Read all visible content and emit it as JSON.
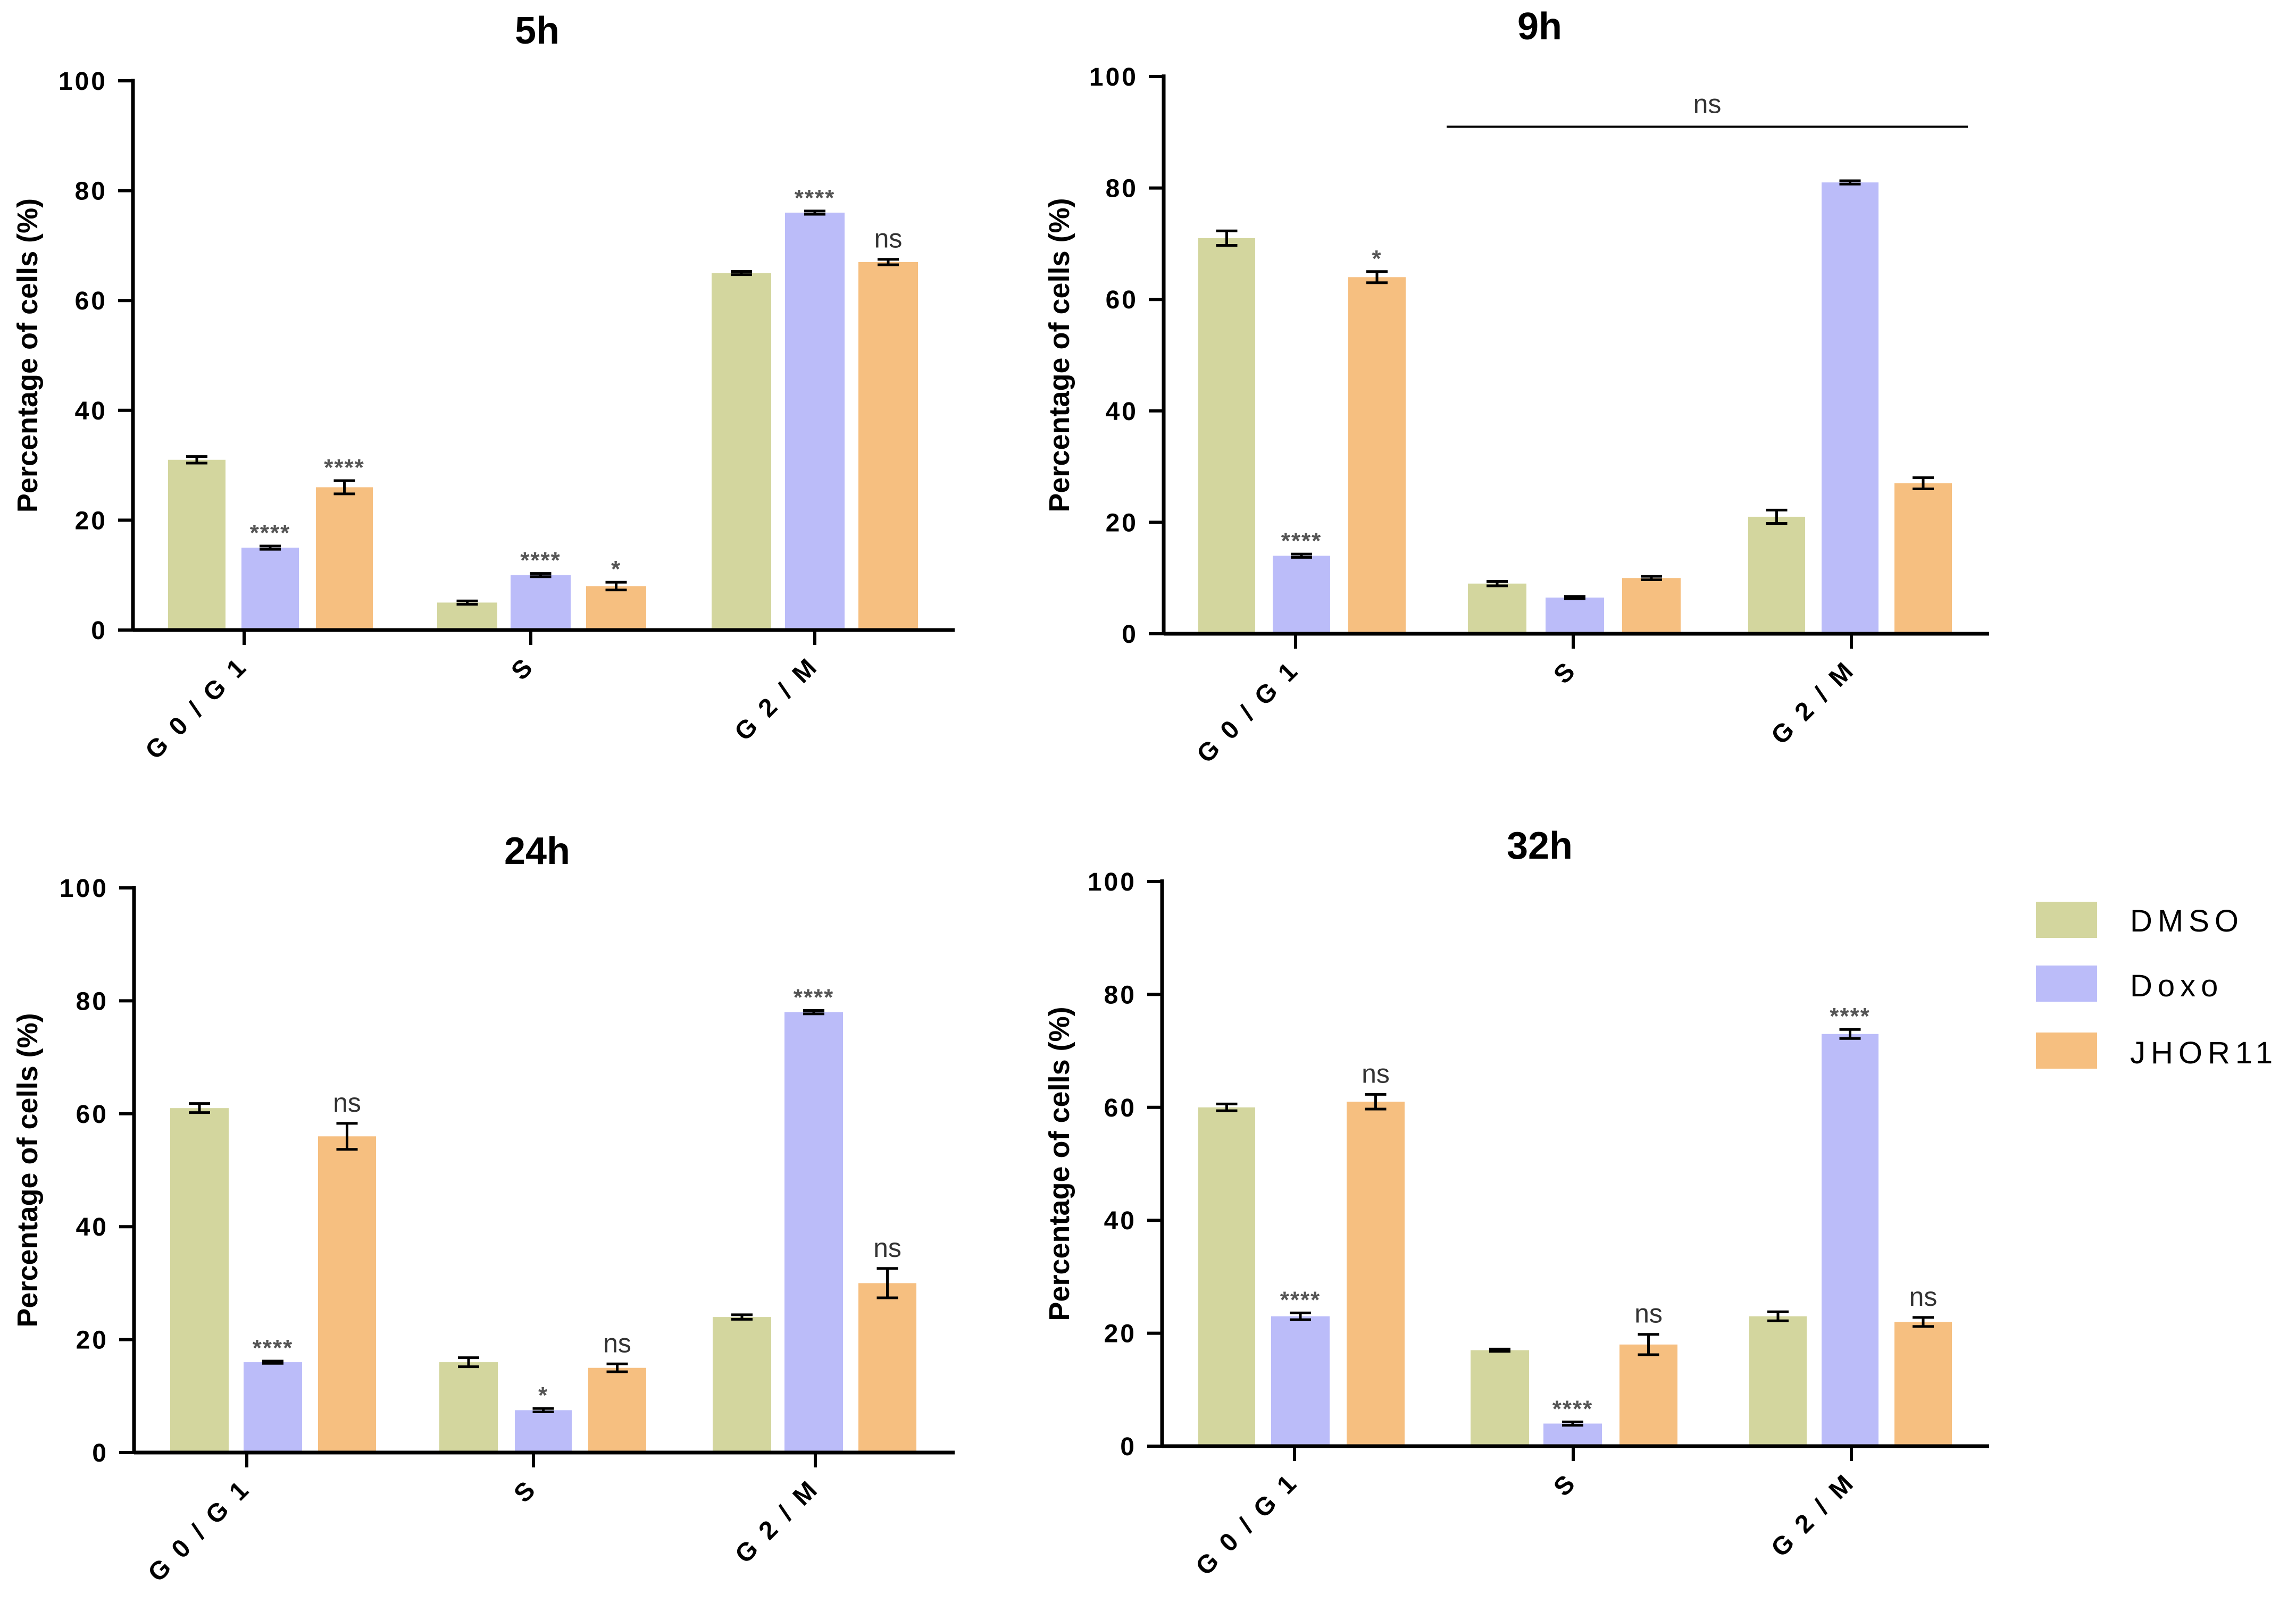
{
  "legend": [
    {
      "name": "DMSO",
      "color": "#D3D69E"
    },
    {
      "name": "Doxo",
      "color": "#BBBCF9"
    },
    {
      "name": "JHOR11",
      "color": "#F6BF80"
    }
  ],
  "chart_data": [
    {
      "type": "bar",
      "title": "5h",
      "ylabel": "Percentage of cells (%)",
      "categories": [
        "G0/G1",
        "S",
        "G2/M"
      ],
      "category_labels": [
        "G 0 / G 1",
        "S",
        "G 2 / M"
      ],
      "ylim": [
        0,
        100
      ],
      "yticks": [
        "0",
        "20",
        "40",
        "60",
        "80",
        "100"
      ],
      "series": [
        {
          "name": "DMSO",
          "values": [
            31,
            5,
            65
          ],
          "errors": [
            0.6,
            0.3,
            0.3
          ],
          "sig": [
            "",
            "",
            ""
          ]
        },
        {
          "name": "Doxo",
          "values": [
            15,
            10,
            76
          ],
          "errors": [
            0.3,
            0.3,
            0.3
          ],
          "sig": [
            "****",
            "****",
            "****"
          ]
        },
        {
          "name": "JHOR11",
          "values": [
            26,
            8,
            67
          ],
          "errors": [
            1.2,
            0.7,
            0.5
          ],
          "sig": [
            "****",
            "*",
            "ns"
          ]
        }
      ],
      "bracket": null
    },
    {
      "type": "bar",
      "title": "9h",
      "ylabel": "Percentage of cells (%)",
      "categories": [
        "G0/G1",
        "S",
        "G2/M"
      ],
      "category_labels": [
        "G 0 / G 1",
        "S",
        "G 2 / M"
      ],
      "ylim": [
        0,
        100
      ],
      "yticks": [
        "0",
        "20",
        "40",
        "60",
        "80",
        "100"
      ],
      "series": [
        {
          "name": "DMSO",
          "values": [
            71,
            9,
            21
          ],
          "errors": [
            1.3,
            0.4,
            1.2
          ],
          "sig": [
            "",
            "",
            ""
          ]
        },
        {
          "name": "Doxo",
          "values": [
            14,
            6.5,
            81
          ],
          "errors": [
            0.3,
            0.2,
            0.3
          ],
          "sig": [
            "****",
            "",
            ""
          ]
        },
        {
          "name": "JHOR11",
          "values": [
            64,
            10,
            27
          ],
          "errors": [
            1.0,
            0.3,
            1.0
          ],
          "sig": [
            "*",
            "",
            ""
          ]
        }
      ],
      "bracket": {
        "label": "ns",
        "y": 91,
        "from_category": 1,
        "to_category": 2
      }
    },
    {
      "type": "bar",
      "title": "24h",
      "ylabel": "Percentage of cells (%)",
      "categories": [
        "G0/G1",
        "S",
        "G2/M"
      ],
      "category_labels": [
        "G 0 / G 1",
        "S",
        "G 2 / M"
      ],
      "ylim": [
        0,
        100
      ],
      "yticks": [
        "0",
        "20",
        "40",
        "60",
        "80",
        "100"
      ],
      "series": [
        {
          "name": "DMSO",
          "values": [
            61,
            16,
            24
          ],
          "errors": [
            0.8,
            0.8,
            0.4
          ],
          "sig": [
            "",
            "",
            ""
          ]
        },
        {
          "name": "Doxo",
          "values": [
            16,
            7.5,
            78
          ],
          "errors": [
            0.2,
            0.3,
            0.3
          ],
          "sig": [
            "****",
            "*",
            "****"
          ]
        },
        {
          "name": "JHOR11",
          "values": [
            56,
            15,
            30
          ],
          "errors": [
            2.3,
            0.7,
            2.6
          ],
          "sig": [
            "ns",
            "ns",
            "ns"
          ]
        }
      ],
      "bracket": null
    },
    {
      "type": "bar",
      "title": "32h",
      "ylabel": "Percentage of cells (%)",
      "categories": [
        "G0/G1",
        "S",
        "G2/M"
      ],
      "category_labels": [
        "G 0 / G 1",
        "S",
        "G 2 / M"
      ],
      "ylim": [
        0,
        100
      ],
      "yticks": [
        "0",
        "20",
        "40",
        "60",
        "80",
        "100"
      ],
      "series": [
        {
          "name": "DMSO",
          "values": [
            60,
            17,
            23
          ],
          "errors": [
            0.6,
            0.2,
            0.8
          ],
          "sig": [
            "",
            "",
            ""
          ]
        },
        {
          "name": "Doxo",
          "values": [
            23,
            4,
            73
          ],
          "errors": [
            0.6,
            0.3,
            0.8
          ],
          "sig": [
            "****",
            "****",
            "****"
          ]
        },
        {
          "name": "JHOR11",
          "values": [
            61,
            18,
            22
          ],
          "errors": [
            1.3,
            1.8,
            0.8
          ],
          "sig": [
            "ns",
            "ns",
            "ns"
          ]
        }
      ],
      "bracket": null
    }
  ]
}
